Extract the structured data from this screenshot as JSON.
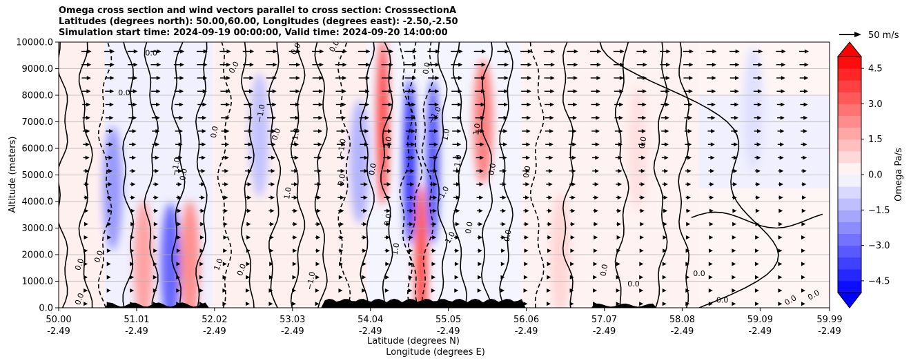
{
  "chart_data": {
    "type": "contour-crosssection",
    "title_lines": [
      "Omega cross section and wind vectors parallel to cross section: CrosssectionA",
      "Latitudes (degrees north): 50.00,60.00, Longitudes (degrees east): -2.50,-2.50",
      "Simulation start time: 2024-09-19 00:00:00, Valid time: 2024-09-20 14:00:00"
    ],
    "ylabel": "Altitude (meters)",
    "xlabel_lat": "Latitude (degrees N)",
    "xlabel_lon": "Longitude (degrees E)",
    "ylim": [
      0,
      10000
    ],
    "yticks": [
      "0.0",
      "1000.0",
      "2000.0",
      "3000.0",
      "4000.0",
      "5000.0",
      "6000.0",
      "7000.0",
      "8000.0",
      "9000.0",
      "10000.0"
    ],
    "xlim": [
      50.0,
      59.99
    ],
    "xticks": [
      {
        "lat": "50.00",
        "lon": "-2.49"
      },
      {
        "lat": "51.01",
        "lon": "-2.49"
      },
      {
        "lat": "52.02",
        "lon": "-2.49"
      },
      {
        "lat": "53.03",
        "lon": "-2.49"
      },
      {
        "lat": "54.04",
        "lon": "-2.49"
      },
      {
        "lat": "55.05",
        "lon": "-2.49"
      },
      {
        "lat": "56.06",
        "lon": "-2.49"
      },
      {
        "lat": "57.07",
        "lon": "-2.49"
      },
      {
        "lat": "58.08",
        "lon": "-2.49"
      },
      {
        "lat": "59.09",
        "lon": "-2.49"
      },
      {
        "lat": "59.99",
        "lon": "-2.49"
      }
    ],
    "colorbar": {
      "label": "Omega Pa/s",
      "range": [
        -5,
        5
      ],
      "ticks": [
        "4.5",
        "3.0",
        "1.5",
        "0.0",
        "−1.5",
        "−3.0",
        "−4.5"
      ],
      "colormap": "bwr"
    },
    "quiver_key": {
      "label": "50 m/s"
    },
    "grid": "horizontal",
    "omega_features": [
      {
        "lat": 50.7,
        "alt": 4500,
        "value": -2.0
      },
      {
        "lat": 51.1,
        "alt": 1700,
        "value": 1.8
      },
      {
        "lat": 51.45,
        "alt": 1600,
        "value": -3.0
      },
      {
        "lat": 51.7,
        "alt": 1700,
        "value": 2.2
      },
      {
        "lat": 52.6,
        "alt": 6500,
        "value": -1.2
      },
      {
        "lat": 53.9,
        "alt": 5500,
        "value": -1.5
      },
      {
        "lat": 54.2,
        "alt": 7000,
        "value": 3.5
      },
      {
        "lat": 54.55,
        "alt": 5500,
        "value": -4.0
      },
      {
        "lat": 54.7,
        "alt": 1500,
        "value": 3.5
      },
      {
        "lat": 54.85,
        "alt": 5500,
        "value": -3.5
      },
      {
        "lat": 55.5,
        "alt": 7000,
        "value": 2.5
      },
      {
        "lat": 56.5,
        "alt": 2000,
        "value": 0.8
      },
      {
        "lat": 57.5,
        "alt": 6000,
        "value": 0.6
      },
      {
        "lat": 59.0,
        "alt": 7500,
        "value": -0.6
      }
    ],
    "contour_labels": [
      {
        "text": "0.0",
        "lat": 50.3,
        "alt": 1600,
        "rot": -70
      },
      {
        "text": "0.0",
        "lat": 50.3,
        "alt": 300,
        "rot": -70
      },
      {
        "text": "0.0",
        "lat": 50.55,
        "alt": 1900,
        "rot": -70
      },
      {
        "text": "0.0",
        "lat": 51.2,
        "alt": 9500,
        "rot": 0
      },
      {
        "text": "0.0",
        "lat": 50.85,
        "alt": 8000,
        "rot": 0
      },
      {
        "text": "0.0",
        "lat": 51.65,
        "alt": 5000,
        "rot": -80
      },
      {
        "text": "−1.0",
        "lat": 51.55,
        "alt": 5300,
        "rot": -80
      },
      {
        "text": "0.0",
        "lat": 52.05,
        "alt": 6600,
        "rot": -80
      },
      {
        "text": "1.0",
        "lat": 52.1,
        "alt": 1600,
        "rot": -70
      },
      {
        "text": "0.0",
        "lat": 52.4,
        "alt": 1400,
        "rot": -70
      },
      {
        "text": "0.0",
        "lat": 52.3,
        "alt": 9000,
        "rot": -60
      },
      {
        "text": "−1.0",
        "lat": 52.65,
        "alt": 7300,
        "rot": -80
      },
      {
        "text": "0.0",
        "lat": 52.85,
        "alt": 6500,
        "rot": -70
      },
      {
        "text": "1.0",
        "lat": 53.0,
        "alt": 4300,
        "rot": -80
      },
      {
        "text": "−1.0",
        "lat": 53.1,
        "alt": 6400,
        "rot": -80
      },
      {
        "text": "0.0",
        "lat": 53.1,
        "alt": 9700,
        "rot": -60
      },
      {
        "text": "−1.0",
        "lat": 53.3,
        "alt": 1000,
        "rot": -80
      },
      {
        "text": "0.0",
        "lat": 53.6,
        "alt": 9800,
        "rot": -60
      },
      {
        "text": "−1.0",
        "lat": 53.7,
        "alt": 6000,
        "rot": -80
      },
      {
        "text": "0.0",
        "lat": 53.7,
        "alt": 4800,
        "rot": -80
      },
      {
        "text": "0.0",
        "lat": 54.1,
        "alt": 5200,
        "rot": -80
      },
      {
        "text": "2.0",
        "lat": 54.3,
        "alt": 6200,
        "rot": -80
      },
      {
        "text": "0.0",
        "lat": 54.3,
        "alt": 3300,
        "rot": -80
      },
      {
        "text": "1.0",
        "lat": 54.4,
        "alt": 2200,
        "rot": -80
      },
      {
        "text": "0.0",
        "lat": 54.8,
        "alt": 9000,
        "rot": -80
      },
      {
        "text": "−1.0",
        "lat": 54.9,
        "alt": 7200,
        "rot": -60
      },
      {
        "text": "−1.0",
        "lat": 55.0,
        "alt": 4200,
        "rot": -60
      },
      {
        "text": "1.0",
        "lat": 55.1,
        "alt": 2600,
        "rot": -60
      },
      {
        "text": "1.0",
        "lat": 55.05,
        "alt": 6500,
        "rot": -80
      },
      {
        "text": "−1.0",
        "lat": 55.2,
        "alt": 5400,
        "rot": -80
      },
      {
        "text": "0.0",
        "lat": 55.35,
        "alt": 3000,
        "rot": -80
      },
      {
        "text": "1.0",
        "lat": 55.45,
        "alt": 6700,
        "rot": -80
      },
      {
        "text": "0.0",
        "lat": 55.65,
        "alt": 5200,
        "rot": -80
      },
      {
        "text": "0.0",
        "lat": 55.85,
        "alt": 2700,
        "rot": -80
      },
      {
        "text": "0.0",
        "lat": 56.1,
        "alt": 5100,
        "rot": -80
      },
      {
        "text": "0.0",
        "lat": 57.1,
        "alt": 1400,
        "rot": -80
      },
      {
        "text": "0.0",
        "lat": 57.45,
        "alt": 800,
        "rot": 0
      },
      {
        "text": "0.0",
        "lat": 57.6,
        "alt": 6200,
        "rot": -80
      },
      {
        "text": "0.0",
        "lat": 58.3,
        "alt": 1200,
        "rot": 0
      },
      {
        "text": "0.0",
        "lat": 58.6,
        "alt": 200,
        "rot": 0
      },
      {
        "text": "0.0",
        "lat": 59.5,
        "alt": 200,
        "rot": -30
      },
      {
        "text": "0.0",
        "lat": 59.8,
        "alt": 400,
        "rot": -30
      }
    ]
  }
}
